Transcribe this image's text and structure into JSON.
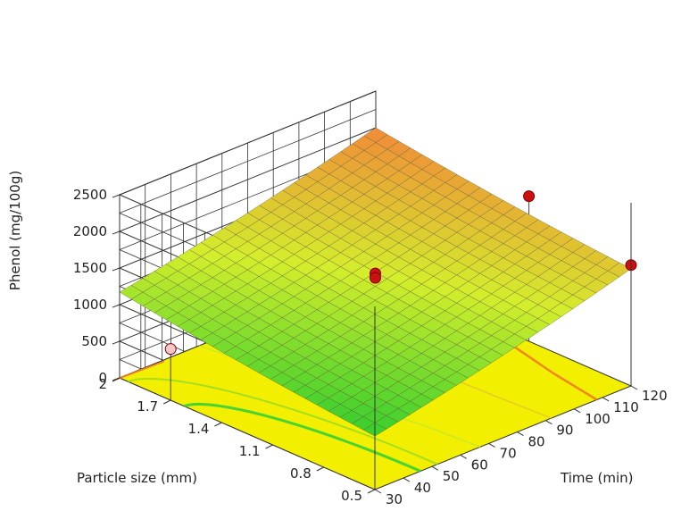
{
  "chart_data": {
    "type": "surface3d",
    "title": "",
    "xlabel": "Time (min)",
    "ylabel": "Particle size (mm)",
    "zlabel": "Phenol (mg/100g)",
    "x_ticks": [
      "30",
      "40",
      "50",
      "60",
      "70",
      "80",
      "90",
      "100",
      "110",
      "120"
    ],
    "y_ticks": [
      "0.5",
      "0.8",
      "1.1",
      "1.4",
      "1.7",
      "2"
    ],
    "z_ticks": [
      "0",
      "500",
      "1000",
      "1500",
      "2000",
      "2500"
    ],
    "xlim": [
      30,
      120
    ],
    "ylim": [
      0.5,
      2
    ],
    "zlim": [
      0,
      2500
    ],
    "grid": true,
    "surface_corners": {
      "time30_size0.5": 730,
      "time120_size0.5": 1600,
      "time30_size2": 1170,
      "time120_size2": 2000
    },
    "design_points": [
      {
        "time": 75,
        "size": 1.25,
        "phenol": 1480,
        "color": "#cc1111"
      },
      {
        "time": 75,
        "size": 1.25,
        "phenol": 1420,
        "color": "#cc1111"
      },
      {
        "time": 120,
        "size": 1.1,
        "phenol": 1980,
        "color": "#cc1111"
      },
      {
        "time": 120,
        "size": 0.5,
        "phenol": 1650,
        "color": "#cc1111"
      },
      {
        "time": 30,
        "size": 1.7,
        "phenol": 700,
        "color": "#f4c8c8"
      }
    ],
    "colors": {
      "low": "#2ecc2e",
      "mid": "#d4ee2c",
      "high": "#f08a38",
      "floor": "#f2f000",
      "contour_low": "#36cf36",
      "contour_high": "#f07a20"
    }
  }
}
